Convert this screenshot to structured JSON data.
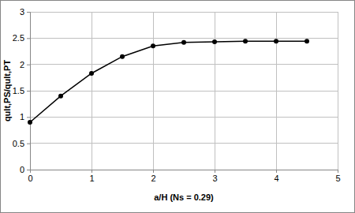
{
  "chart_data": {
    "type": "line",
    "x_label": "a/H (Ns = 0.29)",
    "y_label": "qult,PS/qult,PT",
    "x": [
      0,
      0.5,
      1,
      1.5,
      2,
      2.5,
      3,
      3.5,
      4,
      4.5
    ],
    "values": [
      0.9,
      1.4,
      1.83,
      2.15,
      2.35,
      2.42,
      2.43,
      2.44,
      2.44,
      2.44
    ],
    "color": "#000000",
    "marker": "circle",
    "line_style": "solid",
    "xlim": [
      0,
      5
    ],
    "xticks": [
      0,
      1,
      2,
      3,
      4,
      5
    ],
    "ylim": [
      0,
      3
    ],
    "yticks": [
      0,
      0.5,
      1,
      1.5,
      2,
      2.5,
      3
    ],
    "grid": true
  }
}
